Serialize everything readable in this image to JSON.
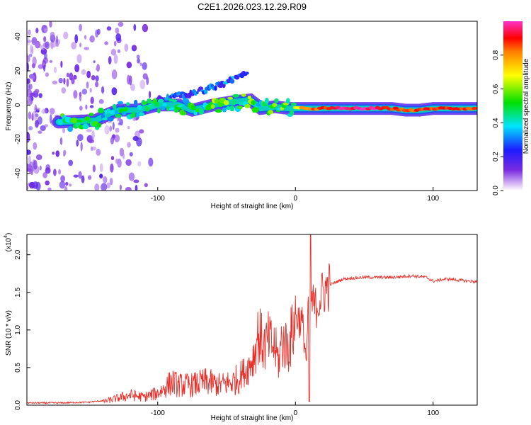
{
  "title": "C2E1.2026.023.12.29.R09",
  "colors": {
    "snr_line": "#e8302a",
    "axis": "#000000",
    "colormap": [
      "#ffffff",
      "#7b2ce0",
      "#1c1cff",
      "#00e5ff",
      "#00e000",
      "#ffff00",
      "#ff0000",
      "#ff30c8"
    ]
  },
  "chart_data": [
    {
      "type": "heatmap",
      "name": "spectrogram",
      "xlabel": "Height of straight line (km)",
      "ylabel": "Frequency (Hz)",
      "xlim": [
        -195,
        132
      ],
      "ylim": [
        -50,
        49
      ],
      "xticks": [
        "-100",
        "0",
        "100"
      ],
      "xtick_values": [
        -100,
        0,
        100
      ],
      "yticks": [
        "-40",
        "-20",
        "0",
        "20",
        "40"
      ],
      "ytick_values": [
        -40,
        -20,
        0,
        20,
        40
      ],
      "colorbar": {
        "label": "Normalized spectral amplitude",
        "range": [
          0,
          1
        ],
        "ticks": [
          "0.0",
          "0.2",
          "0.4",
          "0.6",
          "0.8"
        ],
        "tick_values": [
          0.0,
          0.2,
          0.4,
          0.6,
          0.8
        ]
      },
      "main_trace": [
        {
          "x": -172,
          "freq": -10,
          "amp": 0.45
        },
        {
          "x": -160,
          "freq": -9.5,
          "amp": 0.45
        },
        {
          "x": -145,
          "freq": -9,
          "amp": 0.45
        },
        {
          "x": -135,
          "freq": -5,
          "amp": 0.4
        },
        {
          "x": -128,
          "freq": -3,
          "amp": 0.4
        },
        {
          "x": -115,
          "freq": -3,
          "amp": 0.4
        },
        {
          "x": -100,
          "freq": 0,
          "amp": 0.45
        },
        {
          "x": -85,
          "freq": 0,
          "amp": 0.45
        },
        {
          "x": -75,
          "freq": -3,
          "amp": 0.45
        },
        {
          "x": -60,
          "freq": 0,
          "amp": 0.5
        },
        {
          "x": -45,
          "freq": 2,
          "amp": 0.5
        },
        {
          "x": -33,
          "freq": 3,
          "amp": 0.5
        },
        {
          "x": -25,
          "freq": -2,
          "amp": 0.45
        },
        {
          "x": -15,
          "freq": -1,
          "amp": 0.5
        },
        {
          "x": -5,
          "freq": -2,
          "amp": 0.55
        },
        {
          "x": 5,
          "freq": -2,
          "amp": 0.8
        },
        {
          "x": 20,
          "freq": -2,
          "amp": 0.9
        },
        {
          "x": 40,
          "freq": -2,
          "amp": 1.0
        },
        {
          "x": 60,
          "freq": -2,
          "amp": 1.0
        },
        {
          "x": 70,
          "freq": -2,
          "amp": 0.9
        },
        {
          "x": 80,
          "freq": -3,
          "amp": 0.85
        },
        {
          "x": 90,
          "freq": -3,
          "amp": 0.9
        },
        {
          "x": 100,
          "freq": -2,
          "amp": 0.9
        },
        {
          "x": 115,
          "freq": -2,
          "amp": 0.9
        },
        {
          "x": 132,
          "freq": -2,
          "amp": 0.85
        }
      ],
      "secondary_trace": [
        {
          "x": -100,
          "freq": 3,
          "amp": 0.3
        },
        {
          "x": -80,
          "freq": 6,
          "amp": 0.3
        },
        {
          "x": -60,
          "freq": 10,
          "amp": 0.35
        },
        {
          "x": -45,
          "freq": 15,
          "amp": 0.35
        },
        {
          "x": -35,
          "freq": 20,
          "amp": 0.3
        }
      ]
    },
    {
      "type": "line",
      "name": "snr",
      "xlabel": "Height of straight line (km)",
      "ylabel": "SNR (10 * v/v)",
      "scale_label_base": "(x10",
      "scale_label_exp": "4",
      "scale_label_close": ")",
      "xlim": [
        -195,
        132
      ],
      "ylim": [
        0,
        2.27
      ],
      "xticks": [
        "-100",
        "0",
        "100"
      ],
      "xtick_values": [
        -100,
        0,
        100
      ],
      "yticks": [
        "0.0",
        "0.5",
        "1.0",
        "1.5",
        "2.0"
      ],
      "ytick_values": [
        0.0,
        0.5,
        1.0,
        1.5,
        2.0
      ],
      "series": [
        {
          "name": "SNR",
          "x": [
            -195,
            -170,
            -150,
            -140,
            -130,
            -120,
            -110,
            -100,
            -95,
            -90,
            -85,
            -75,
            -65,
            -55,
            -45,
            -35,
            -30,
            -27,
            -25,
            -22,
            -20,
            -15,
            -12,
            -10,
            -5,
            0,
            5,
            8,
            10,
            12,
            15,
            20,
            25,
            35,
            50,
            70,
            85,
            95,
            100,
            110,
            120,
            132
          ],
          "y": [
            0.02,
            0.02,
            0.03,
            0.05,
            0.1,
            0.15,
            0.12,
            0.18,
            0.25,
            0.35,
            0.3,
            0.3,
            0.35,
            0.3,
            0.35,
            0.5,
            0.7,
            1.0,
            0.9,
            0.8,
            0.9,
            0.8,
            0.6,
            0.9,
            0.8,
            1.2,
            1.1,
            0.6,
            1.6,
            1.35,
            1.3,
            1.5,
            1.6,
            1.68,
            1.7,
            1.7,
            1.72,
            1.7,
            1.65,
            1.68,
            1.66,
            1.64
          ]
        }
      ],
      "peak": {
        "x": 11,
        "y": 2.27
      }
    }
  ]
}
